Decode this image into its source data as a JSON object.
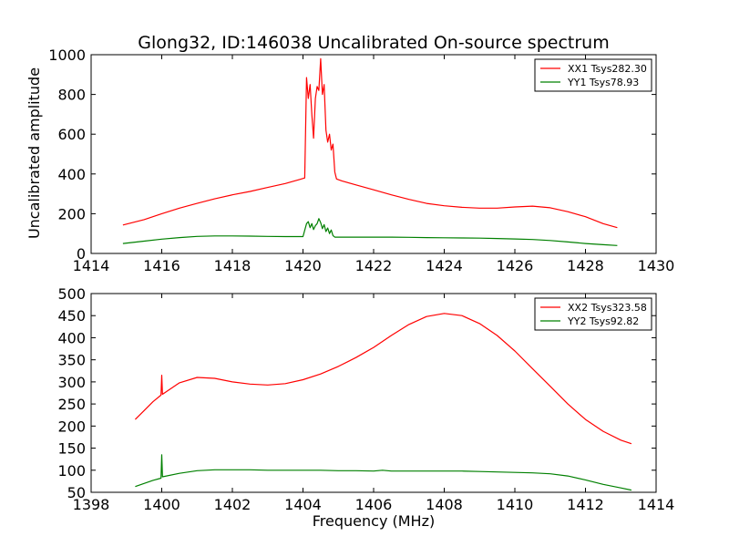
{
  "chart_data": [
    {
      "type": "line",
      "title": "Glong32, ID:146038 Uncalibrated On-source spectrum",
      "xlabel": "",
      "ylabel": "Uncalibrated amplitude",
      "xlim": [
        1414,
        1430
      ],
      "ylim": [
        0,
        1000
      ],
      "xticks": [
        1414,
        1416,
        1418,
        1420,
        1422,
        1424,
        1426,
        1428,
        1430
      ],
      "yticks": [
        0,
        200,
        400,
        600,
        800,
        1000
      ],
      "legend_position": "top-right",
      "series": [
        {
          "name": "XX1 Tsys282.30",
          "color": "#ff0000",
          "x": [
            1414.9,
            1415.5,
            1416.0,
            1416.5,
            1417.0,
            1417.5,
            1418.0,
            1418.5,
            1419.0,
            1419.5,
            1419.9,
            1420.05,
            1420.1,
            1420.15,
            1420.2,
            1420.25,
            1420.3,
            1420.35,
            1420.4,
            1420.45,
            1420.5,
            1420.55,
            1420.6,
            1420.65,
            1420.7,
            1420.75,
            1420.8,
            1420.85,
            1420.9,
            1420.95,
            1421.1,
            1421.5,
            1422.0,
            1422.5,
            1423.0,
            1423.5,
            1424.0,
            1424.5,
            1425.0,
            1425.5,
            1426.0,
            1426.5,
            1427.0,
            1427.5,
            1428.0,
            1428.5,
            1428.9
          ],
          "y": [
            143,
            170,
            200,
            228,
            252,
            275,
            295,
            312,
            332,
            352,
            372,
            380,
            885,
            780,
            850,
            700,
            580,
            780,
            840,
            820,
            980,
            800,
            850,
            620,
            560,
            600,
            520,
            550,
            410,
            375,
            365,
            345,
            320,
            295,
            272,
            252,
            240,
            232,
            228,
            228,
            234,
            238,
            230,
            210,
            185,
            150,
            130
          ]
        },
        {
          "name": "YY1 Tsys78.93",
          "color": "#008000",
          "x": [
            1414.9,
            1415.5,
            1416.0,
            1416.5,
            1417.0,
            1417.5,
            1418.0,
            1418.5,
            1419.0,
            1419.5,
            1420.0,
            1420.1,
            1420.15,
            1420.2,
            1420.25,
            1420.3,
            1420.35,
            1420.4,
            1420.45,
            1420.5,
            1420.55,
            1420.6,
            1420.65,
            1420.7,
            1420.75,
            1420.8,
            1420.85,
            1420.9,
            1421.0,
            1421.5,
            1422.0,
            1422.5,
            1423.0,
            1423.5,
            1424.0,
            1424.5,
            1425.0,
            1425.5,
            1426.0,
            1426.5,
            1427.0,
            1427.5,
            1428.0,
            1428.5,
            1428.9
          ],
          "y": [
            50,
            62,
            72,
            80,
            86,
            88,
            88,
            87,
            86,
            85,
            85,
            150,
            160,
            130,
            150,
            120,
            140,
            150,
            175,
            155,
            125,
            145,
            110,
            128,
            100,
            118,
            90,
            82,
            82,
            82,
            82,
            82,
            81,
            80,
            79,
            78,
            77,
            75,
            73,
            70,
            65,
            58,
            50,
            44,
            40
          ]
        }
      ]
    },
    {
      "type": "line",
      "title": "",
      "xlabel": "Frequency (MHz)",
      "ylabel": "",
      "xlim": [
        1398,
        1414
      ],
      "ylim": [
        50,
        500
      ],
      "xticks": [
        1398,
        1400,
        1402,
        1404,
        1406,
        1408,
        1410,
        1412,
        1414
      ],
      "yticks": [
        50,
        100,
        150,
        200,
        250,
        300,
        350,
        400,
        450,
        500
      ],
      "legend_position": "top-right",
      "series": [
        {
          "name": "XX2 Tsys323.58",
          "color": "#ff0000",
          "x": [
            1399.25,
            1399.5,
            1399.75,
            1399.98,
            1400.0,
            1400.02,
            1400.5,
            1401.0,
            1401.5,
            1402.0,
            1402.5,
            1403.0,
            1403.5,
            1404.0,
            1404.5,
            1405.0,
            1405.5,
            1406.0,
            1406.5,
            1407.0,
            1407.5,
            1408.0,
            1408.5,
            1409.0,
            1409.5,
            1410.0,
            1410.5,
            1411.0,
            1411.5,
            1412.0,
            1412.5,
            1413.0,
            1413.3
          ],
          "y": [
            215,
            235,
            255,
            270,
            315,
            272,
            298,
            310,
            308,
            300,
            295,
            293,
            296,
            305,
            318,
            335,
            355,
            378,
            405,
            430,
            448,
            455,
            450,
            432,
            405,
            370,
            330,
            290,
            250,
            215,
            188,
            168,
            160
          ]
        },
        {
          "name": "YY2 Tsys92.82",
          "color": "#008000",
          "x": [
            1399.25,
            1399.5,
            1399.75,
            1399.98,
            1400.0,
            1400.02,
            1400.5,
            1401.0,
            1401.5,
            1402.0,
            1402.5,
            1403.0,
            1403.5,
            1404.0,
            1404.5,
            1405.0,
            1405.5,
            1406.0,
            1406.25,
            1406.5,
            1407.0,
            1407.5,
            1408.0,
            1408.5,
            1409.0,
            1409.5,
            1410.0,
            1410.5,
            1411.0,
            1411.5,
            1412.0,
            1412.5,
            1413.0,
            1413.3
          ],
          "y": [
            63,
            70,
            77,
            82,
            135,
            85,
            93,
            99,
            101,
            101,
            101,
            100,
            100,
            100,
            100,
            99,
            99,
            98,
            100,
            98,
            98,
            98,
            98,
            98,
            97,
            96,
            95,
            94,
            92,
            87,
            78,
            68,
            60,
            55
          ]
        }
      ]
    }
  ]
}
